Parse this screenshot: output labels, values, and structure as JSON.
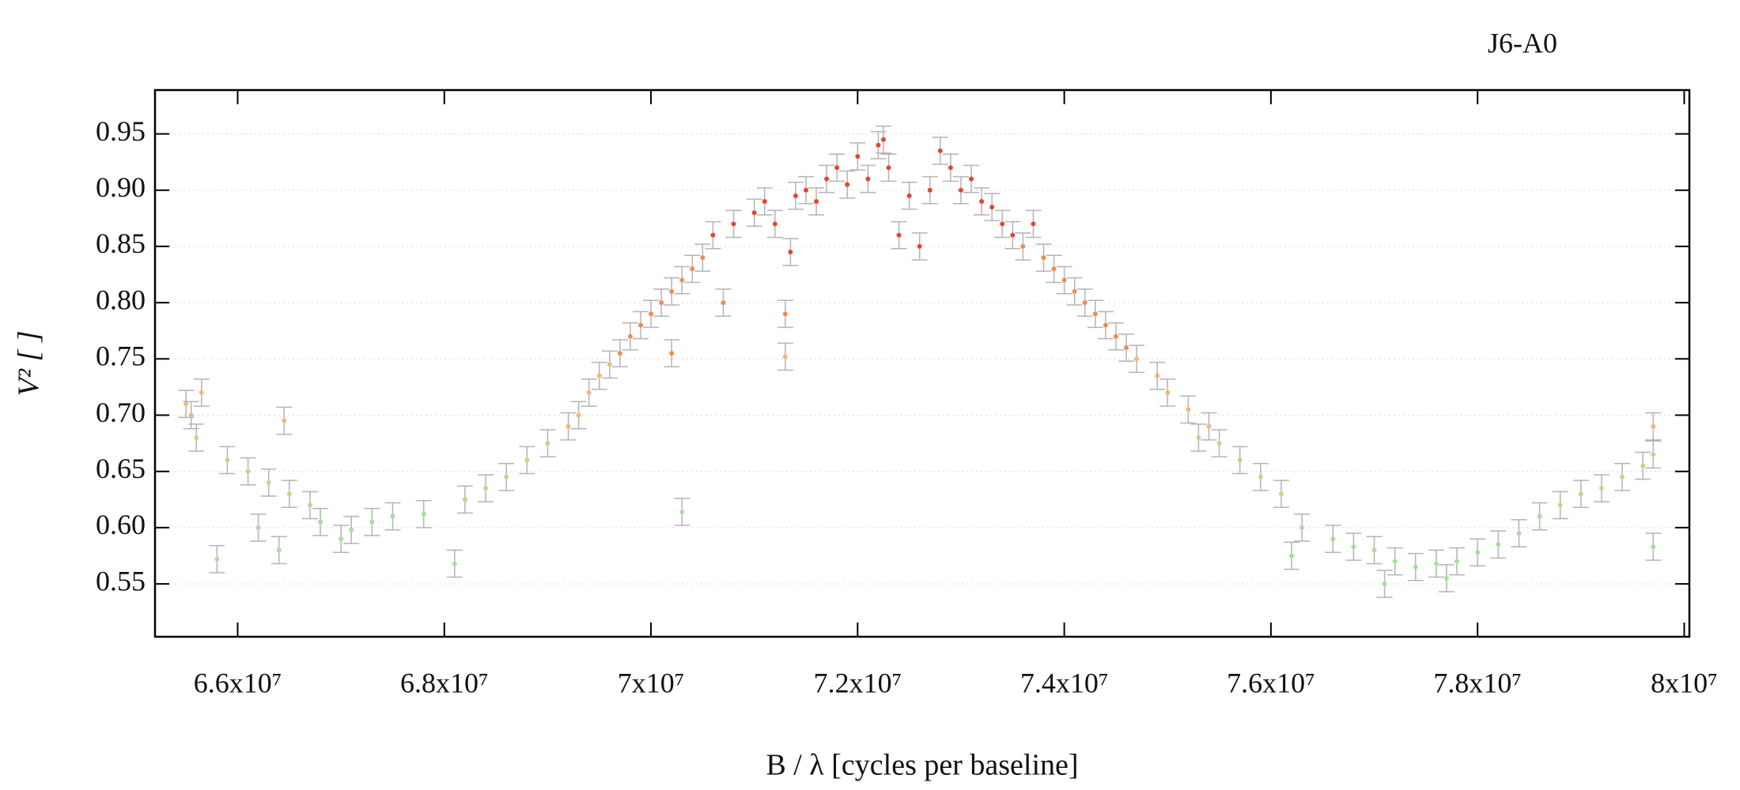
{
  "chart_data": {
    "type": "scatter",
    "title": "J6-A0",
    "x_label": "B / λ [cycles per baseline]",
    "y_label": "V² [ ]",
    "xlim": [
      65200000.0,
      80050000.0
    ],
    "ylim": [
      0.503,
      0.989
    ],
    "xticks": [
      {
        "value": 66000000.0,
        "label": "6.6x10⁷"
      },
      {
        "value": 68000000.0,
        "label": "6.8x10⁷"
      },
      {
        "value": 70000000.0,
        "label": "7x10⁷"
      },
      {
        "value": 72000000.0,
        "label": "7.2x10⁷"
      },
      {
        "value": 74000000.0,
        "label": "7.4x10⁷"
      },
      {
        "value": 76000000.0,
        "label": "7.6x10⁷"
      },
      {
        "value": 78000000.0,
        "label": "7.8x10⁷"
      },
      {
        "value": 80000000.0,
        "label": "8x10⁷"
      }
    ],
    "yticks": [
      0.55,
      {
        "value": 0.6,
        "label": "0.60"
      },
      0.65,
      {
        "value": 0.7,
        "label": "0.70"
      },
      0.75,
      {
        "value": 0.8,
        "label": "0.80"
      },
      0.85,
      {
        "value": 0.9,
        "label": "0.90"
      },
      0.95
    ],
    "grid": true,
    "error_color": "#b4b4b8",
    "series": [
      {
        "color": "#a6df9c",
        "error": 0.012,
        "x": [
          66200000.0,
          66800000.0,
          67100000.0,
          67300000.0,
          67500000.0,
          67800000.0,
          68100000.0,
          65800000.0,
          66400000.0,
          67000000.0,
          70300000.0,
          76300000.0,
          76600000.0,
          76800000.0,
          77000000.0,
          77200000.0,
          77400000.0,
          77600000.0,
          77800000.0,
          78000000.0,
          78200000.0,
          78400000.0,
          78600000.0,
          76200000.0,
          77100000.0,
          77700000.0,
          79700000.0
        ],
        "values": [
          0.6,
          0.605,
          0.598,
          0.605,
          0.61,
          0.612,
          0.568,
          0.572,
          0.58,
          0.59,
          0.614,
          0.6,
          0.59,
          0.583,
          0.58,
          0.57,
          0.565,
          0.568,
          0.57,
          0.578,
          0.585,
          0.595,
          0.61,
          0.575,
          0.55,
          0.555,
          0.583
        ]
      },
      {
        "color": "#cad383",
        "error": 0.012,
        "x": [
          65600000.0,
          65900000.0,
          66100000.0,
          66300000.0,
          66500000.0,
          66700000.0,
          68200000.0,
          68400000.0,
          68600000.0,
          68800000.0,
          69000000.0,
          75500000.0,
          75700000.0,
          75900000.0,
          76100000.0,
          78800000.0,
          79000000.0,
          79200000.0,
          79400000.0,
          79600000.0,
          79700000.0,
          75300000.0
        ],
        "values": [
          0.68,
          0.66,
          0.65,
          0.64,
          0.63,
          0.62,
          0.625,
          0.635,
          0.645,
          0.66,
          0.675,
          0.675,
          0.66,
          0.645,
          0.63,
          0.62,
          0.63,
          0.635,
          0.645,
          0.655,
          0.665,
          0.68
        ]
      },
      {
        "color": "#f2b878",
        "error": 0.012,
        "x": [
          65500000.0,
          65550000.0,
          65650000.0,
          69200000.0,
          69300000.0,
          69400000.0,
          69500000.0,
          69600000.0,
          74700000.0,
          74900000.0,
          75000000.0,
          75200000.0,
          75400000.0,
          79700000.0,
          66450000.0,
          71300000.0
        ],
        "values": [
          0.71,
          0.7,
          0.72,
          0.69,
          0.7,
          0.72,
          0.735,
          0.745,
          0.75,
          0.735,
          0.72,
          0.705,
          0.69,
          0.69,
          0.695,
          0.752
        ]
      },
      {
        "color": "#f08c4e",
        "error": 0.012,
        "x": [
          69700000.0,
          69800000.0,
          69900000.0,
          70000000.0,
          70100000.0,
          70200000.0,
          70300000.0,
          70400000.0,
          70500000.0,
          70200000.0,
          70700000.0,
          71300000.0,
          73800000.0,
          73900000.0,
          74000000.0,
          74100000.0,
          74200000.0,
          74300000.0,
          74400000.0,
          74500000.0,
          74600000.0,
          73600000.0
        ],
        "values": [
          0.755,
          0.77,
          0.78,
          0.79,
          0.8,
          0.81,
          0.82,
          0.83,
          0.84,
          0.755,
          0.8,
          0.79,
          0.84,
          0.83,
          0.82,
          0.81,
          0.8,
          0.79,
          0.78,
          0.77,
          0.76,
          0.85
        ]
      },
      {
        "color": "#e5452b",
        "error": 0.012,
        "x": [
          70600000.0,
          70800000.0,
          71000000.0,
          71100000.0,
          71200000.0,
          71400000.0,
          71500000.0,
          71600000.0,
          71700000.0,
          71800000.0,
          71900000.0,
          72000000.0,
          72100000.0,
          72200000.0,
          72300000.0,
          72400000.0,
          72500000.0,
          72600000.0,
          72700000.0,
          72800000.0,
          72900000.0,
          73000000.0,
          73100000.0,
          73200000.0,
          73300000.0,
          73400000.0,
          73500000.0,
          73700000.0,
          71350000.0,
          72250000.0
        ],
        "values": [
          0.86,
          0.87,
          0.88,
          0.89,
          0.87,
          0.895,
          0.9,
          0.89,
          0.91,
          0.92,
          0.905,
          0.93,
          0.91,
          0.94,
          0.92,
          0.86,
          0.895,
          0.85,
          0.9,
          0.935,
          0.92,
          0.9,
          0.91,
          0.89,
          0.885,
          0.87,
          0.86,
          0.87,
          0.845,
          0.945
        ]
      }
    ]
  }
}
